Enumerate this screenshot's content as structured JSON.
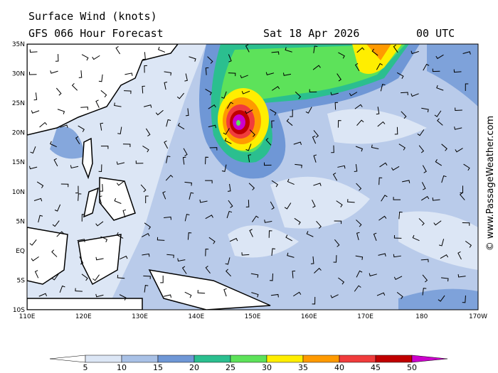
{
  "header": {
    "title": "Surface Wind (knots)",
    "forecast": "GFS 066 Hour Forecast",
    "date": "Sat 18 Apr 2026",
    "time": "00 UTC"
  },
  "map": {
    "lat_labels": [
      "35N",
      "30N",
      "25N",
      "20N",
      "15N",
      "10N",
      "5N",
      "EQ",
      "5S",
      "10S"
    ],
    "lon_labels": [
      "110E",
      "120E",
      "130E",
      "140E",
      "150E",
      "160E",
      "170E",
      "180",
      "170W"
    ]
  },
  "colorbar": {
    "labels": [
      5,
      10,
      15,
      20,
      25,
      30,
      35,
      40,
      45,
      50
    ],
    "colors": [
      "#ffffff",
      "#dce6f5",
      "#a9c1e6",
      "#6f97d6",
      "#2bbf8f",
      "#5de25a",
      "#ffee00",
      "#ff9a00",
      "#f03c3c",
      "#c00000",
      "#cc00cc"
    ]
  },
  "credit": "© www.PassageWeather.com"
}
